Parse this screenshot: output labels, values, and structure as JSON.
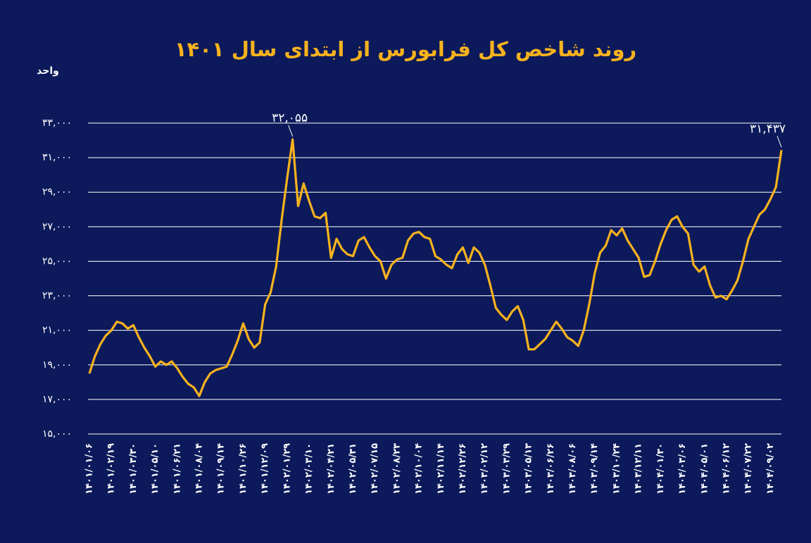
{
  "chart_data": {
    "type": "line",
    "title": "روند شاخص کل فرابورس از ابتدای سال ۱۴۰۱",
    "y_label": "واحد",
    "ylim": [
      15000,
      33000
    ],
    "yticks": [
      {
        "value": 15000,
        "label": "۱۵,۰۰۰"
      },
      {
        "value": 17000,
        "label": "۱۷,۰۰۰"
      },
      {
        "value": 19000,
        "label": "۱۹,۰۰۰"
      },
      {
        "value": 21000,
        "label": "۲۱,۰۰۰"
      },
      {
        "value": 23000,
        "label": "۲۳,۰۰۰"
      },
      {
        "value": 25000,
        "label": "۲۵,۰۰۰"
      },
      {
        "value": 27000,
        "label": "۲۷,۰۰۰"
      },
      {
        "value": 29000,
        "label": "۲۹,۰۰۰"
      },
      {
        "value": 31000,
        "label": "۳۱,۰۰۰"
      },
      {
        "value": 33000,
        "label": "۳۳,۰۰۰"
      }
    ],
    "grid": true,
    "color": "#f7b21e",
    "categories": [
      "۱۴۰۱/۰۱/۰۶",
      null,
      null,
      null,
      "۱۴۰۱/۰۲/۱۹",
      null,
      null,
      null,
      "۱۴۰۱/۰۳/۳۰",
      null,
      null,
      null,
      "۱۴۰۱/۰۵/۱۰",
      null,
      null,
      null,
      "۱۴۰۱/۰۶/۲۱",
      null,
      null,
      null,
      "۱۴۰۱/۰۸/۰۴",
      null,
      null,
      null,
      "۱۴۰۱/۰۹/۱۴",
      null,
      null,
      null,
      "۱۴۰۱/۱۰/۲۶",
      null,
      null,
      null,
      "۱۴۰۱/۱۲/۰۹",
      null,
      null,
      null,
      "۱۴۰۲/۰۱/۲۹",
      null,
      null,
      null,
      "۱۴۰۲/۰۳/۱۰",
      null,
      null,
      null,
      "۱۴۰۲/۰۴/۲۱",
      null,
      null,
      null,
      "۱۴۰۲/۰۵/۳۱",
      null,
      null,
      null,
      "۱۴۰۲/۰۷/۱۵",
      null,
      null,
      null,
      "۱۴۰۲/۰۸/۲۳",
      null,
      null,
      null,
      "۱۴۰۲/۱۰/۰۴",
      null,
      null,
      null,
      "۱۴۰۲/۱۱/۱۴",
      null,
      null,
      null,
      "۱۴۰۲/۱۲/۲۶",
      null,
      null,
      null,
      "۱۴۰۳/۰۲/۱۲",
      null,
      null,
      null,
      "۱۴۰۳/۰۳/۲۹",
      null,
      null,
      null,
      "۱۴۰۳/۰۵/۱۳",
      null,
      null,
      null,
      "۱۴۰۳/۰۶/۲۶",
      null,
      null,
      null,
      "۱۴۰۳/۰۸/۰۶",
      null,
      null,
      null,
      "۱۴۰۳/۰۹/۱۴",
      null,
      null,
      null,
      "۱۴۰۳/۱۰/۲۴",
      null,
      null,
      null,
      "۱۴۰۳/۱۲/۱۱",
      null,
      null,
      null,
      "۱۴۰۴/۰۱/۳۰",
      null,
      null,
      null,
      "۱۴۰۴/۰۳/۰۶",
      null,
      null,
      null,
      "۱۴۰۴/۰۵/۰۱",
      null,
      null,
      null,
      "۱۴۰۴/۰۶/۱۲",
      null,
      null,
      null,
      "۱۴۰۴/۰۷/۲۲",
      null,
      null,
      null,
      "۱۴۰۴/۰۹/۰۲",
      null,
      null
    ],
    "values": [
      18500,
      19500,
      20200,
      20700,
      21000,
      21500,
      21400,
      21100,
      21300,
      20600,
      20000,
      19500,
      18900,
      19200,
      19000,
      19200,
      18800,
      18300,
      17900,
      17700,
      17200,
      18000,
      18500,
      18700,
      18800,
      18900,
      19600,
      20400,
      21400,
      20500,
      20000,
      20300,
      22500,
      23200,
      24700,
      27400,
      29800,
      32055,
      28200,
      29500,
      28500,
      27600,
      27500,
      27800,
      25200,
      26300,
      25700,
      25400,
      25300,
      26200,
      26400,
      25800,
      25300,
      25000,
      24000,
      24800,
      25100,
      25200,
      26200,
      26600,
      26700,
      26400,
      26300,
      25300,
      25100,
      24800,
      24600,
      25400,
      25800,
      24900,
      25800,
      25500,
      24800,
      23600,
      22300,
      21900,
      21600,
      22100,
      22400,
      21600,
      19900,
      19900,
      20200,
      20500,
      21000,
      21500,
      21100,
      20600,
      20400,
      20100,
      21000,
      22500,
      24300,
      25500,
      25900,
      26800,
      26500,
      26900,
      26200,
      25700,
      25200,
      24100,
      24200,
      25000,
      26000,
      26800,
      27400,
      27600,
      27000,
      26600,
      24800,
      24400,
      24700,
      23600,
      22900,
      23000,
      22800,
      23300,
      23900,
      25000,
      26300,
      27000,
      27700,
      28000,
      28600,
      29300,
      31437
    ],
    "value_labels": [
      null,
      null,
      null,
      null,
      null,
      null,
      null,
      null,
      null,
      null,
      null,
      null,
      null,
      null,
      null,
      null,
      null,
      null,
      null,
      null,
      null,
      null,
      null,
      null,
      null,
      null,
      null,
      null,
      null,
      null,
      null,
      null,
      null,
      null,
      null,
      null,
      null,
      "۳۲,۰۵۵",
      null,
      null,
      null,
      null,
      null,
      null,
      null,
      null,
      null,
      null,
      null,
      null,
      null,
      null,
      null,
      null,
      null,
      null,
      null,
      null,
      null,
      null,
      null,
      null,
      null,
      null,
      null,
      null,
      null,
      null,
      null,
      null,
      null,
      null,
      null,
      null,
      null,
      null,
      null,
      null,
      null,
      null,
      null,
      null,
      null,
      null,
      null,
      null,
      null,
      null,
      null,
      null,
      null,
      null,
      null,
      null,
      null,
      null,
      null,
      null,
      null,
      null,
      null,
      null,
      null,
      null,
      null,
      null,
      null,
      null,
      null,
      null,
      null,
      null,
      null,
      null,
      null,
      null,
      null,
      null,
      null,
      null,
      null,
      null,
      null,
      null,
      null,
      null,
      "۳۱,۴۳۷"
    ]
  }
}
